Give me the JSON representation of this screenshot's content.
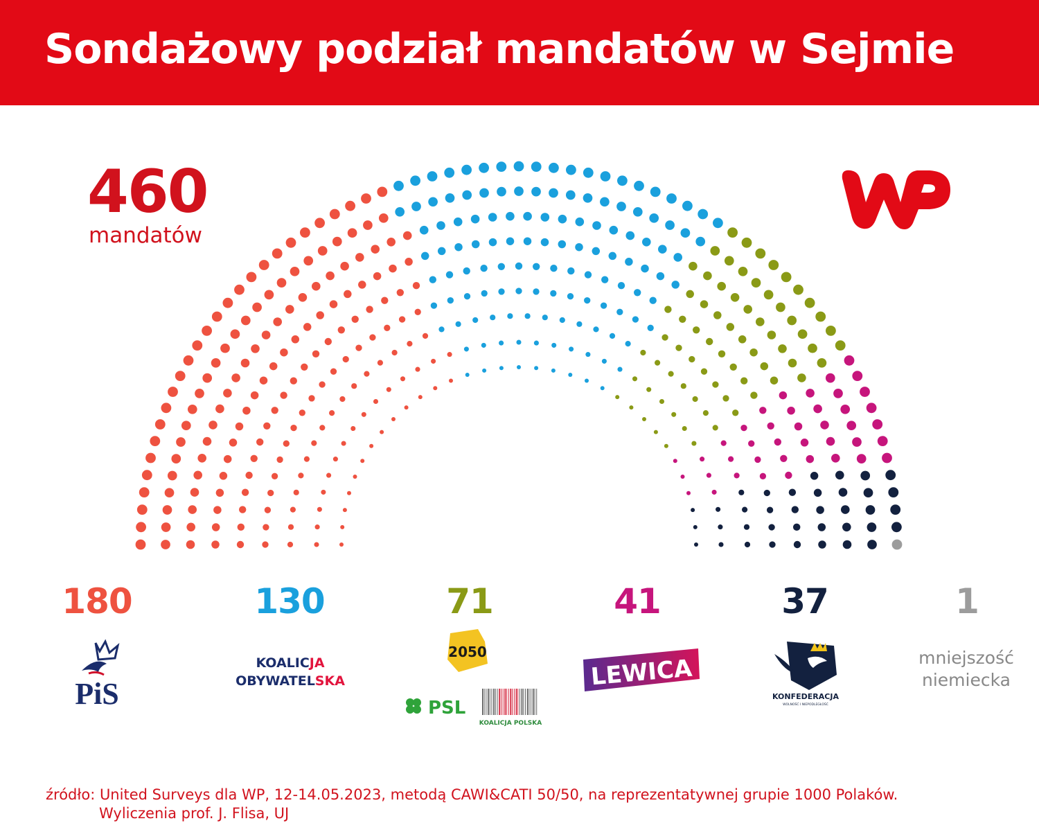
{
  "header": {
    "title": "Sondażowy podział mandatów w Sejmie"
  },
  "total": {
    "number": "460",
    "label": "mandatów"
  },
  "brand": {
    "logo": "wp-logo",
    "color": "#e20a16"
  },
  "chart_data": {
    "type": "hemicycle",
    "total_seats": 460,
    "series": [
      {
        "name": "PiS",
        "seats": 180,
        "color": "#ee5240"
      },
      {
        "name": "KOALICJA OBYWATELSKA",
        "seats": 130,
        "color": "#1aa0dd"
      },
      {
        "name": "2050 / PSL KOALICJA POLSKA",
        "seats": 71,
        "color": "#8a9a16"
      },
      {
        "name": "LEWICA",
        "seats": 41,
        "color": "#c6157c"
      },
      {
        "name": "KONFEDERACJA",
        "seats": 37,
        "color": "#13213f"
      },
      {
        "name": "mniejszość niemiecka",
        "seats": 1,
        "color": "#9c9c9c"
      }
    ]
  },
  "parties": [
    {
      "count": "180",
      "color": "#ee5240",
      "logo_text": "PiS"
    },
    {
      "count": "130",
      "color": "#1aa0dd",
      "logo_line1a": "KOALIC",
      "logo_line1b": "JA",
      "logo_line2a": "OBYWATEL",
      "logo_line2b": "SKA"
    },
    {
      "count": "71",
      "color": "#8a9a16",
      "logo_2050": "2050",
      "logo_psl": "PSL",
      "logo_kp": "KOALICJA POLSKA"
    },
    {
      "count": "41",
      "color": "#c6157c",
      "logo_text": "LEWICA"
    },
    {
      "count": "37",
      "color": "#13213f",
      "logo_text": "KONFEDERACJA",
      "logo_sub": "WOLNOŚĆ I NIEPODLEGŁOŚĆ"
    },
    {
      "count": "1",
      "color": "#9c9c9c",
      "line1": "mniejszość",
      "line2": "niemiecka"
    }
  ],
  "source": {
    "line1": "źródło: United Surveys dla WP, 12-14.05.2023, metodą CAWI&CATI 50/50, na reprezentatywnej grupie 1000 Polaków.",
    "line2": "Wyliczenia prof. J. Flisa, UJ"
  }
}
